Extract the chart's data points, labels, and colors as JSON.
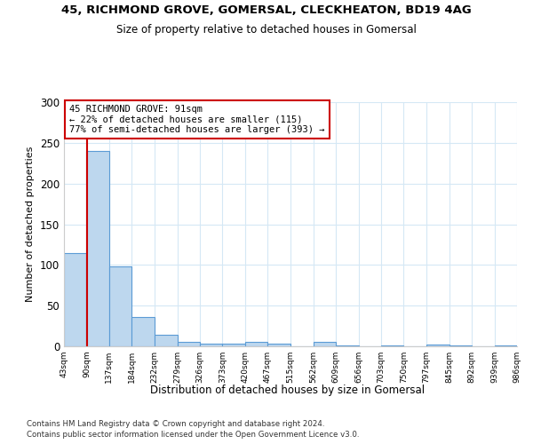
{
  "title1": "45, RICHMOND GROVE, GOMERSAL, CLECKHEATON, BD19 4AG",
  "title2": "Size of property relative to detached houses in Gomersal",
  "xlabel": "Distribution of detached houses by size in Gomersal",
  "ylabel": "Number of detached properties",
  "footnote1": "Contains HM Land Registry data © Crown copyright and database right 2024.",
  "footnote2": "Contains public sector information licensed under the Open Government Licence v3.0.",
  "annotation_line1": "45 RICHMOND GROVE: 91sqm",
  "annotation_line2": "← 22% of detached houses are smaller (115)",
  "annotation_line3": "77% of semi-detached houses are larger (393) →",
  "property_size": 91,
  "bar_edges": [
    43,
    90,
    137,
    184,
    232,
    279,
    326,
    373,
    420,
    467,
    515,
    562,
    609,
    656,
    703,
    750,
    797,
    845,
    892,
    939,
    986
  ],
  "bar_heights": [
    115,
    240,
    98,
    36,
    14,
    5,
    3,
    3,
    5,
    3,
    0,
    5,
    1,
    0,
    1,
    0,
    2,
    1,
    0,
    1
  ],
  "bar_color": "#bdd7ee",
  "bar_edge_color": "#5b9bd5",
  "highlight_line_color": "#cc0000",
  "annotation_box_color": "#cc0000",
  "ylim": [
    0,
    300
  ],
  "yticks": [
    0,
    50,
    100,
    150,
    200,
    250,
    300
  ]
}
